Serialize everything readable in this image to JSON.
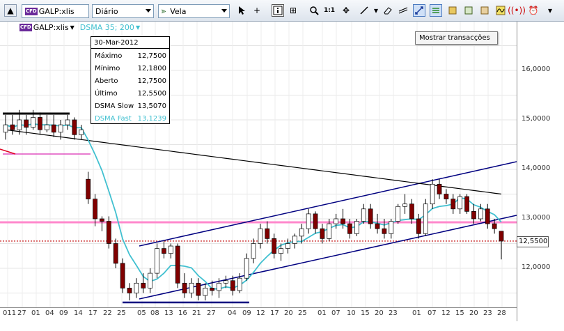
{
  "toolbar": {
    "symbol": "GALP:xlis",
    "period": "Diário",
    "chart_type": "Vela"
  },
  "legend": {
    "symbol": "GALP:xlis",
    "indicator": "DSMA 35; 200"
  },
  "info": {
    "date": "30-Mar-2012",
    "rows": [
      {
        "label": "Máximo",
        "value": "12,7500"
      },
      {
        "label": "Mínimo",
        "value": "12,1800"
      },
      {
        "label": "Aberto",
        "value": "12,7500"
      },
      {
        "label": "Último",
        "value": "12,5500"
      },
      {
        "label": "DSMA Slow",
        "value": "13,5070"
      },
      {
        "label": "DSMA Fast",
        "value": "13,1239"
      }
    ]
  },
  "tooltip": "Mostrar transacções",
  "price_tag": "12,5500",
  "colors": {
    "candle": "#800000",
    "slow": "#000000",
    "fast": "#40c0d0",
    "channel": "#000080",
    "support": "#ff88cc",
    "last": "#c00000"
  },
  "chart_data": {
    "type": "candlestick",
    "y_ticks": [
      "16,0000",
      "15,0000",
      "14,0000",
      "13,0000",
      "12,0000"
    ],
    "ylim": [
      11.3,
      16.9
    ],
    "x_ticks": [
      "011",
      "27",
      "01",
      "04",
      "09",
      "14",
      "17",
      "22",
      "25",
      "05",
      "08",
      "13",
      "16",
      "21",
      "27",
      "04",
      "09",
      "12",
      "17",
      "20",
      "25",
      "01",
      "07",
      "10",
      "15",
      "20",
      "23",
      "01",
      "07",
      "12",
      "15",
      "20",
      "23",
      "28"
    ],
    "last": 12.55,
    "support": 12.93,
    "candles": [
      [
        14.75,
        15.1,
        14.6,
        14.9
      ],
      [
        14.9,
        15.1,
        14.7,
        14.8
      ],
      [
        14.8,
        15.2,
        14.7,
        15.0
      ],
      [
        15.0,
        15.1,
        14.7,
        14.85
      ],
      [
        14.85,
        15.2,
        14.8,
        15.05
      ],
      [
        15.05,
        15.15,
        14.7,
        14.8
      ],
      [
        14.8,
        15.1,
        14.75,
        14.9
      ],
      [
        14.9,
        15.1,
        14.65,
        14.75
      ],
      [
        14.75,
        15.0,
        14.6,
        14.9
      ],
      [
        14.9,
        15.1,
        14.8,
        15.0
      ],
      [
        15.0,
        15.05,
        14.6,
        14.7
      ],
      [
        14.7,
        14.9,
        14.6,
        14.8
      ],
      [
        13.8,
        13.95,
        13.3,
        13.4
      ],
      [
        13.4,
        13.5,
        12.85,
        13.0
      ],
      [
        13.0,
        13.05,
        12.75,
        12.95
      ],
      [
        12.95,
        13.05,
        12.4,
        12.5
      ],
      [
        12.5,
        12.6,
        12.0,
        12.1
      ],
      [
        12.1,
        12.2,
        11.5,
        11.6
      ],
      [
        11.6,
        11.7,
        11.35,
        11.5
      ],
      [
        11.5,
        11.8,
        11.4,
        11.7
      ],
      [
        11.7,
        11.9,
        11.5,
        11.6
      ],
      [
        11.6,
        12.0,
        11.5,
        11.9
      ],
      [
        11.9,
        12.5,
        11.8,
        12.4
      ],
      [
        12.4,
        12.55,
        12.2,
        12.3
      ],
      [
        12.3,
        12.5,
        12.2,
        12.45
      ],
      [
        12.45,
        12.5,
        11.6,
        11.7
      ],
      [
        11.7,
        11.9,
        11.4,
        11.5
      ],
      [
        11.5,
        11.8,
        11.4,
        11.7
      ],
      [
        11.7,
        11.8,
        11.35,
        11.45
      ],
      [
        11.45,
        11.7,
        11.35,
        11.6
      ],
      [
        11.6,
        11.75,
        11.45,
        11.55
      ],
      [
        11.55,
        11.8,
        11.4,
        11.7
      ],
      [
        11.7,
        11.85,
        11.6,
        11.75
      ],
      [
        11.75,
        11.85,
        11.45,
        11.55
      ],
      [
        11.55,
        11.9,
        11.5,
        11.8
      ],
      [
        11.8,
        12.3,
        11.75,
        12.2
      ],
      [
        12.2,
        12.6,
        12.1,
        12.5
      ],
      [
        12.5,
        12.9,
        12.4,
        12.8
      ],
      [
        12.8,
        12.95,
        12.5,
        12.6
      ],
      [
        12.6,
        12.7,
        12.2,
        12.3
      ],
      [
        12.3,
        12.5,
        12.15,
        12.4
      ],
      [
        12.4,
        12.6,
        12.3,
        12.5
      ],
      [
        12.5,
        12.7,
        12.4,
        12.65
      ],
      [
        12.65,
        12.9,
        12.5,
        12.8
      ],
      [
        12.8,
        13.2,
        12.7,
        13.1
      ],
      [
        13.1,
        13.15,
        12.7,
        12.8
      ],
      [
        12.8,
        12.9,
        12.5,
        12.6
      ],
      [
        12.6,
        13.0,
        12.55,
        12.9
      ],
      [
        12.9,
        13.1,
        12.8,
        13.0
      ],
      [
        13.0,
        13.2,
        12.8,
        12.9
      ],
      [
        12.9,
        13.0,
        12.6,
        12.7
      ],
      [
        12.7,
        13.0,
        12.65,
        12.95
      ],
      [
        12.95,
        13.3,
        12.9,
        13.2
      ],
      [
        13.2,
        13.3,
        12.8,
        12.9
      ],
      [
        12.9,
        13.1,
        12.7,
        12.8
      ],
      [
        12.8,
        13.0,
        12.6,
        12.7
      ],
      [
        12.7,
        13.0,
        12.6,
        12.95
      ],
      [
        12.95,
        13.3,
        12.9,
        13.25
      ],
      [
        13.25,
        13.5,
        13.1,
        13.3
      ],
      [
        13.3,
        13.4,
        12.9,
        13.0
      ],
      [
        13.0,
        13.1,
        12.6,
        12.7
      ],
      [
        12.7,
        13.4,
        12.65,
        13.3
      ],
      [
        13.3,
        13.8,
        13.2,
        13.7
      ],
      [
        13.7,
        13.8,
        13.4,
        13.5
      ],
      [
        13.5,
        13.6,
        13.3,
        13.4
      ],
      [
        13.4,
        13.5,
        13.1,
        13.2
      ],
      [
        13.2,
        13.5,
        13.1,
        13.45
      ],
      [
        13.45,
        13.5,
        13.1,
        13.15
      ],
      [
        13.15,
        13.3,
        12.9,
        13.0
      ],
      [
        13.0,
        13.3,
        12.95,
        13.2
      ],
      [
        13.2,
        13.3,
        12.8,
        12.9
      ],
      [
        12.9,
        13.0,
        12.7,
        12.8
      ],
      [
        12.75,
        12.75,
        12.18,
        12.55
      ]
    ]
  }
}
